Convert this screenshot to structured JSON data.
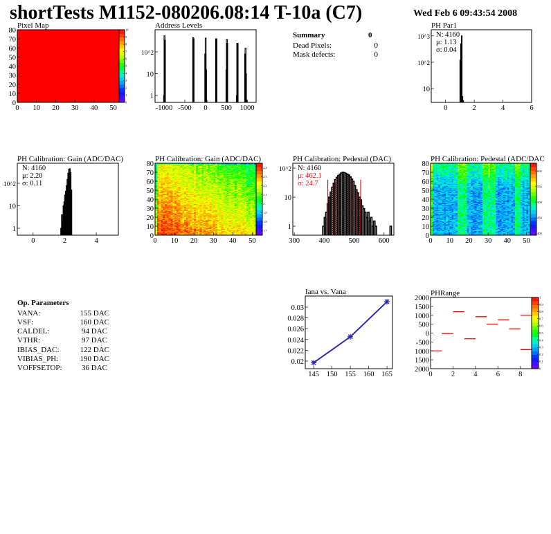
{
  "header": {
    "title": "shortTests M1152-080206.08:14 T-10a (C7)",
    "date": "Wed Feb  6 09:43:54 2008"
  },
  "summary": {
    "title": "Summary",
    "total": "0",
    "rows": [
      {
        "label": "Dead Pixels:",
        "value": "0"
      },
      {
        "label": "Mask defects:",
        "value": "0"
      }
    ]
  },
  "op_parameters": {
    "title": "Op. Parameters",
    "rows": [
      {
        "label": "VANA:",
        "value": "155 DAC"
      },
      {
        "label": "VSF:",
        "value": "160 DAC"
      },
      {
        "label": "CALDEL:",
        "value": "94 DAC"
      },
      {
        "label": "VTHR:",
        "value": "97 DAC"
      },
      {
        "label": "IBIAS_DAC:",
        "value": "122 DAC"
      },
      {
        "label": "VIBIAS_PH:",
        "value": "190 DAC"
      },
      {
        "label": "VOFFSETOP:",
        "value": "36 DAC"
      }
    ]
  },
  "colors": {
    "line": "#000000",
    "fit": "#ff0000",
    "graph": "#2a2ab0",
    "phrange": "#ff0000"
  },
  "chart_data": [
    {
      "id": "pixel_map",
      "type": "heatmap",
      "title": "Pixel Map",
      "xlim": [
        0,
        53
      ],
      "ylim": [
        0,
        80
      ],
      "x_ticks": [
        {
          "v": 0,
          "label": "0"
        },
        {
          "v": 10,
          "label": "10"
        },
        {
          "v": 20,
          "label": "20"
        },
        {
          "v": 30,
          "label": "30"
        },
        {
          "v": 40,
          "label": "40"
        },
        {
          "v": 50,
          "label": "50"
        }
      ],
      "y_ticks": [
        {
          "v": 0,
          "label": "0"
        },
        {
          "v": 10,
          "label": "10"
        },
        {
          "v": 20,
          "label": "20"
        },
        {
          "v": 30,
          "label": "30"
        },
        {
          "v": 40,
          "label": "40"
        },
        {
          "v": 50,
          "label": "50"
        },
        {
          "v": 60,
          "label": "60"
        },
        {
          "v": 70,
          "label": "70"
        },
        {
          "v": 80,
          "label": "80"
        }
      ],
      "zlim": [
        0,
        10
      ],
      "z_ticks": [
        "0",
        "1",
        "2",
        "3",
        "4",
        "5",
        "6",
        "7",
        "8",
        "9",
        "10"
      ],
      "uniform_value": 10
    },
    {
      "id": "address_levels",
      "type": "bar",
      "title": "Address Levels",
      "xlim": [
        -1216,
        1216
      ],
      "ylim": [
        0.48,
        1040
      ],
      "yscale": "log",
      "x_ticks": [
        {
          "v": -1000,
          "label": "-1000"
        },
        {
          "v": -500,
          "label": "-500"
        },
        {
          "v": 0,
          "label": "0"
        },
        {
          "v": 500,
          "label": "500"
        },
        {
          "v": 1000,
          "label": "1000"
        }
      ],
      "y_ticks": [
        {
          "v": 1,
          "label": "1"
        },
        {
          "v": 10,
          "label": "10"
        },
        {
          "v": 100,
          "label": "10^2"
        }
      ],
      "bin_width": 10,
      "bins": [
        [
          -1010,
          1
        ],
        [
          -1000,
          550
        ],
        [
          -990,
          350
        ],
        [
          -310,
          450
        ],
        [
          -300,
          400
        ],
        [
          -20,
          80
        ],
        [
          -10,
          430
        ],
        [
          0,
          15
        ],
        [
          10,
          0.6
        ],
        [
          240,
          400
        ],
        [
          250,
          400
        ],
        [
          490,
          15
        ],
        [
          500,
          370
        ],
        [
          510,
          250
        ],
        [
          740,
          1
        ],
        [
          750,
          250
        ],
        [
          760,
          250
        ],
        [
          940,
          80
        ],
        [
          950,
          150
        ],
        [
          960,
          10
        ],
        [
          980,
          0.6
        ]
      ]
    },
    {
      "id": "ph_par1",
      "type": "bar",
      "title": "PH Par1",
      "xlim": [
        -1,
        6
      ],
      "ylim": [
        3,
        1700
      ],
      "yscale": "log",
      "x_ticks": [
        {
          "v": 0,
          "label": "0"
        },
        {
          "v": 2,
          "label": "2"
        },
        {
          "v": 4,
          "label": "4"
        },
        {
          "v": 6,
          "label": "6"
        }
      ],
      "y_ticks": [
        {
          "v": 10,
          "label": "10"
        },
        {
          "v": 100,
          "label": "10^2"
        },
        {
          "v": 1000,
          "label": "10^3"
        }
      ],
      "stats": [
        {
          "text": "N: 4160",
          "color": "#000000"
        },
        {
          "text": "μ: 1.13",
          "color": "#000000"
        },
        {
          "text": "σ: 0.04",
          "color": "#000000"
        }
      ],
      "bin_width": 0.05,
      "bins": [
        [
          1.0,
          120
        ],
        [
          1.05,
          500
        ],
        [
          1.1,
          1000
        ],
        [
          1.15,
          5
        ],
        [
          1.2,
          3.5
        ]
      ]
    },
    {
      "id": "gain_hist",
      "type": "bar",
      "title": "PH Calibration: Gain (ADC/DAC)",
      "xlim": [
        -1,
        5.4
      ],
      "ylim": [
        0.49,
        780
      ],
      "yscale": "log",
      "x_ticks": [
        {
          "v": 0,
          "label": "0"
        },
        {
          "v": 2,
          "label": "2"
        },
        {
          "v": 4,
          "label": "4"
        }
      ],
      "y_ticks": [
        {
          "v": 1,
          "label": "1"
        },
        {
          "v": 10,
          "label": "10"
        },
        {
          "v": 100,
          "label": "10^2"
        }
      ],
      "stats": [
        {
          "text": "N: 4160",
          "color": "#000000"
        },
        {
          "text": "μ: 2.20",
          "color": "#000000"
        },
        {
          "text": "σ: 0.11",
          "color": "#000000"
        }
      ],
      "bin_width": 0.05,
      "bins": [
        [
          1.75,
          1
        ],
        [
          1.8,
          4
        ],
        [
          1.85,
          2
        ],
        [
          1.9,
          10
        ],
        [
          1.95,
          15
        ],
        [
          2.0,
          30
        ],
        [
          2.05,
          45
        ],
        [
          2.1,
          80
        ],
        [
          2.15,
          150
        ],
        [
          2.2,
          280
        ],
        [
          2.25,
          420
        ],
        [
          2.3,
          450
        ],
        [
          2.35,
          300
        ],
        [
          2.4,
          50
        ]
      ]
    },
    {
      "id": "gain_map",
      "type": "heatmap",
      "title": "PH Calibration: Gain (ADC/DAC)",
      "xlim": [
        0,
        52
      ],
      "ylim": [
        0,
        80
      ],
      "x_ticks": [
        {
          "v": 0,
          "label": "0"
        },
        {
          "v": 10,
          "label": "10"
        },
        {
          "v": 20,
          "label": "20"
        },
        {
          "v": 30,
          "label": "30"
        },
        {
          "v": 40,
          "label": "40"
        },
        {
          "v": 50,
          "label": "50"
        }
      ],
      "y_ticks": [
        {
          "v": 0,
          "label": "0"
        },
        {
          "v": 10,
          "label": "10"
        },
        {
          "v": 20,
          "label": "20"
        },
        {
          "v": 30,
          "label": "30"
        },
        {
          "v": 40,
          "label": "40"
        },
        {
          "v": 50,
          "label": "50"
        },
        {
          "v": 60,
          "label": "60"
        },
        {
          "v": 70,
          "label": "70"
        },
        {
          "v": 80,
          "label": "80"
        }
      ],
      "zlim": [
        1.65,
        2.45
      ],
      "z_ticks": [
        "1.7",
        "1.8",
        "1.9",
        "2",
        "2.1",
        "2.2",
        "2.3",
        "2.4"
      ],
      "columns": 52,
      "rows": 80
    },
    {
      "id": "ped_hist",
      "type": "bar",
      "title": "PH Calibration: Pedestal (DAC)",
      "xlim": [
        295,
        633
      ],
      "ylim": [
        0.49,
        147
      ],
      "yscale": "log",
      "x_ticks": [
        {
          "v": 300,
          "label": "300"
        },
        {
          "v": 400,
          "label": "400"
        },
        {
          "v": 500,
          "label": "500"
        },
        {
          "v": 600,
          "label": "600"
        }
      ],
      "y_ticks": [
        {
          "v": 1,
          "label": "1"
        },
        {
          "v": 10,
          "label": "10"
        },
        {
          "v": 100,
          "label": "10^2"
        }
      ],
      "stats": [
        {
          "text": "N: 4160",
          "color": "#000000"
        },
        {
          "text": "μ: 462.1",
          "color": "#ff0000"
        },
        {
          "text": "σ: 24.7",
          "color": "#ff0000"
        }
      ],
      "fit_range": [
        412,
        522
      ],
      "bin_width": 5,
      "bins": [
        [
          395,
          1
        ],
        [
          400,
          2
        ],
        [
          405,
          3
        ],
        [
          410,
          6
        ],
        [
          415,
          10
        ],
        [
          420,
          15
        ],
        [
          425,
          22
        ],
        [
          430,
          30
        ],
        [
          435,
          40
        ],
        [
          440,
          48
        ],
        [
          445,
          55
        ],
        [
          450,
          62
        ],
        [
          455,
          68
        ],
        [
          460,
          72
        ],
        [
          465,
          70
        ],
        [
          470,
          66
        ],
        [
          475,
          62
        ],
        [
          480,
          58
        ],
        [
          485,
          50
        ],
        [
          490,
          42
        ],
        [
          495,
          35
        ],
        [
          500,
          25
        ],
        [
          505,
          18
        ],
        [
          510,
          14
        ],
        [
          515,
          10
        ],
        [
          520,
          8
        ],
        [
          525,
          5
        ],
        [
          530,
          4
        ],
        [
          535,
          3
        ],
        [
          540,
          2
        ],
        [
          545,
          3
        ],
        [
          550,
          1.5
        ],
        [
          555,
          2
        ],
        [
          560,
          1
        ],
        [
          565,
          1.5
        ],
        [
          570,
          1
        ],
        [
          620,
          1
        ]
      ]
    },
    {
      "id": "ped_map",
      "type": "heatmap",
      "title": "PH Calibration: Pedestal (ADC/DAC",
      "xlim": [
        0,
        52
      ],
      "ylim": [
        0,
        80
      ],
      "x_ticks": [
        {
          "v": 0,
          "label": "0"
        },
        {
          "v": 10,
          "label": "10"
        },
        {
          "v": 20,
          "label": "20"
        },
        {
          "v": 30,
          "label": "30"
        },
        {
          "v": 40,
          "label": "40"
        },
        {
          "v": 50,
          "label": "50"
        }
      ],
      "y_ticks": [
        {
          "v": 0,
          "label": "0"
        },
        {
          "v": 10,
          "label": "10"
        },
        {
          "v": 20,
          "label": "20"
        },
        {
          "v": 30,
          "label": "30"
        },
        {
          "v": 40,
          "label": "40"
        },
        {
          "v": 50,
          "label": "50"
        },
        {
          "v": 60,
          "label": "60"
        },
        {
          "v": 70,
          "label": "70"
        },
        {
          "v": 80,
          "label": "80"
        }
      ],
      "zlim": [
        395,
        625
      ],
      "z_ticks": [
        "400",
        "450",
        "500",
        "550",
        "600"
      ],
      "columns": 52,
      "rows": 80
    },
    {
      "id": "iana",
      "type": "line",
      "title": "Iana vs. Vana",
      "xlim": [
        142.7,
        166.5
      ],
      "ylim": [
        0.01859,
        0.03205
      ],
      "x_ticks": [
        {
          "v": 145,
          "label": "145"
        },
        {
          "v": 150,
          "label": "150"
        },
        {
          "v": 155,
          "label": "155"
        },
        {
          "v": 160,
          "label": "160"
        },
        {
          "v": 165,
          "label": "165"
        }
      ],
      "y_ticks": [
        {
          "v": 0.02,
          "label": "0.02"
        },
        {
          "v": 0.022,
          "label": "0.022"
        },
        {
          "v": 0.024,
          "label": "0.024"
        },
        {
          "v": 0.026,
          "label": "0.026"
        },
        {
          "v": 0.028,
          "label": "0.028"
        },
        {
          "v": 0.03,
          "label": "0.03"
        }
      ],
      "points": [
        [
          145,
          0.0197
        ],
        [
          155,
          0.0245
        ],
        [
          165,
          0.031
        ]
      ]
    },
    {
      "id": "phrange",
      "type": "heatmap",
      "title": "PHRange",
      "xlim": [
        0,
        9
      ],
      "ylim": [
        -2000,
        2000
      ],
      "x_ticks": [
        {
          "v": 0,
          "label": "0"
        },
        {
          "v": 2,
          "label": "2"
        },
        {
          "v": 4,
          "label": "4"
        },
        {
          "v": 6,
          "label": "6"
        },
        {
          "v": 8,
          "label": "8"
        }
      ],
      "y_ticks": [
        {
          "v": 2000,
          "label": "2000"
        },
        {
          "v": 1500,
          "label": "1500"
        },
        {
          "v": 1000,
          "label": "1000"
        },
        {
          "v": 500,
          "label": "500"
        },
        {
          "v": 0,
          "label": "0"
        },
        {
          "v": -500,
          "label": "-500"
        },
        {
          "v": -1000,
          "label": "1000"
        },
        {
          "v": -1500,
          "label": "1500"
        },
        {
          "v": -2000,
          "label": "2000"
        }
      ],
      "zlim": [
        0,
        1
      ],
      "z_ticks": [
        "0",
        "0.1",
        "0.2",
        "0.3",
        "0.4",
        "0.5",
        "0.6",
        "0.7",
        "0.8",
        "0.9",
        "1"
      ],
      "segments": [
        [
          0,
          -1000
        ],
        [
          1,
          -30
        ],
        [
          2,
          1200
        ],
        [
          3,
          -320
        ],
        [
          4,
          920
        ],
        [
          5,
          500
        ],
        [
          6,
          740
        ],
        [
          7,
          230
        ],
        [
          8,
          1000
        ],
        [
          8,
          -930
        ]
      ]
    }
  ]
}
